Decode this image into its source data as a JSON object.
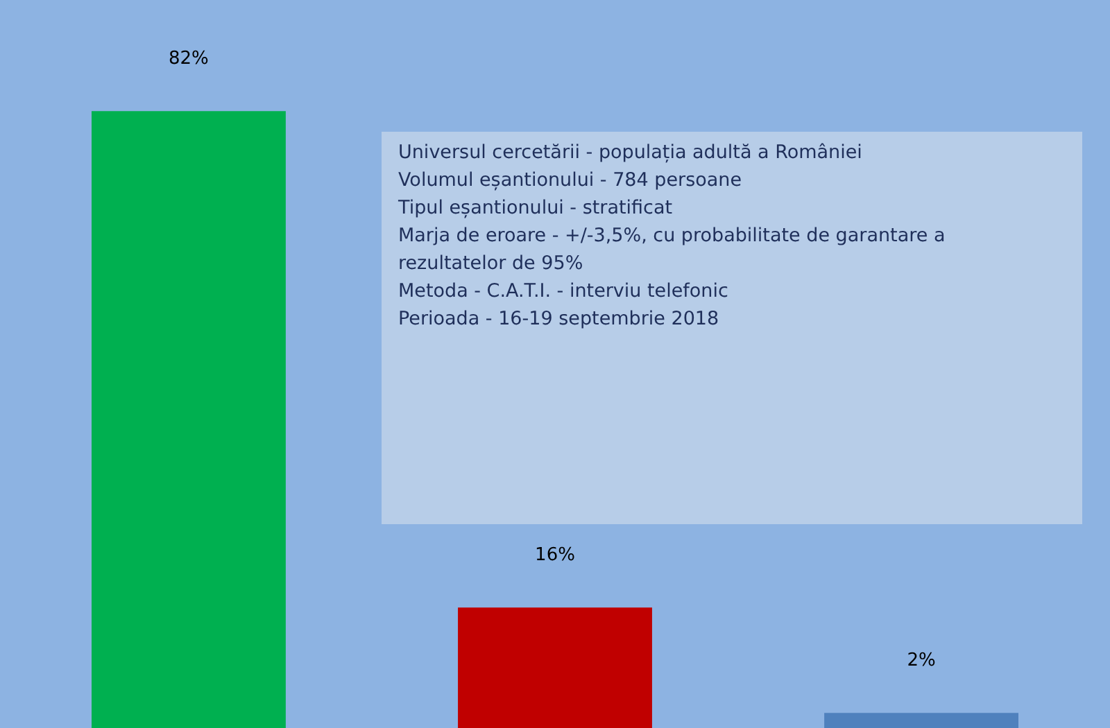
{
  "chart_data": {
    "type": "bar",
    "categories": [
      null,
      null,
      null
    ],
    "values": [
      82,
      16,
      2
    ],
    "colors": [
      "#00b050",
      "#c00000",
      "#4f81bd"
    ],
    "value_labels": [
      "82%",
      "16%",
      "2%"
    ],
    "tick_labels": false,
    "annotations": [
      "Universul cercetării - populația adultă a României",
      "Volumul eșantionului - 784 persoane",
      "Tipul eșantionului - stratificat",
      "Marja de eroare - +/-3,5%, cu probabilitate de garantare a rezultatelor de 95%",
      "Metoda - C.A.T.I. - interviu telefonic",
      "Perioada - 16-19 septembrie 2018"
    ]
  }
}
